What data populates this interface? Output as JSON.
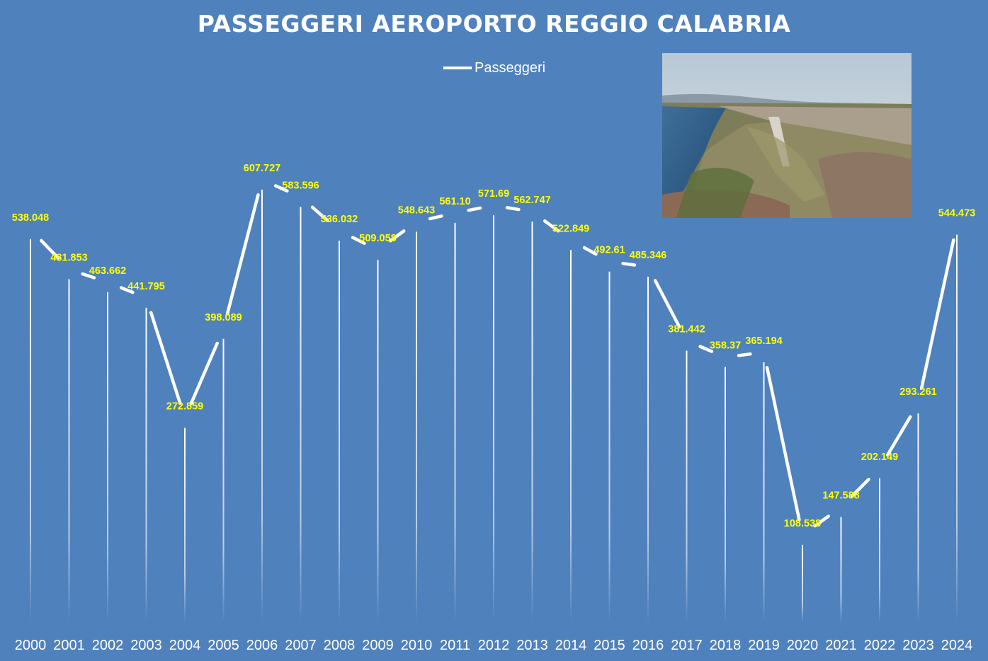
{
  "chart_data": {
    "type": "line",
    "title": "PASSEGGERI AEROPORTO REGGIO CALABRIA",
    "xlabel": "",
    "ylabel": "",
    "categories": [
      "2000",
      "2001",
      "2002",
      "2003",
      "2004",
      "2005",
      "2006",
      "2007",
      "2008",
      "2009",
      "2010",
      "2011",
      "2012",
      "2013",
      "2014",
      "2015",
      "2016",
      "2017",
      "2018",
      "2019",
      "2020",
      "2021",
      "2022",
      "2023",
      "2024"
    ],
    "series": [
      {
        "name": "Passeggeri",
        "values": [
          538048,
          481853,
          463662,
          441795,
          272859,
          398089,
          607727,
          583596,
          536032,
          509058,
          548643,
          561100,
          571690,
          562747,
          522849,
          492610,
          485346,
          381442,
          358370,
          365194,
          108538,
          147588,
          202149,
          293261,
          544473
        ],
        "labels": [
          "538.048",
          "481.853",
          "463.662",
          "441.795",
          "272.859",
          "398.089",
          "607.727",
          "583.596",
          "536.032",
          "509.058",
          "548.643",
          "561.10",
          "571.69",
          "562.747",
          "522.849",
          "492.61",
          "485.346",
          "381.442",
          "358.37",
          "365.194",
          "108.538",
          "147.588",
          "202.149",
          "293.261",
          "544.473"
        ]
      }
    ],
    "ylim": [
      0,
      607727
    ],
    "grid": false,
    "legend_position": "top-center",
    "colors": {
      "background": "#4f81bd",
      "line": "#ffffff",
      "data_label": "#ffff00",
      "text": "#ffffff"
    }
  }
}
